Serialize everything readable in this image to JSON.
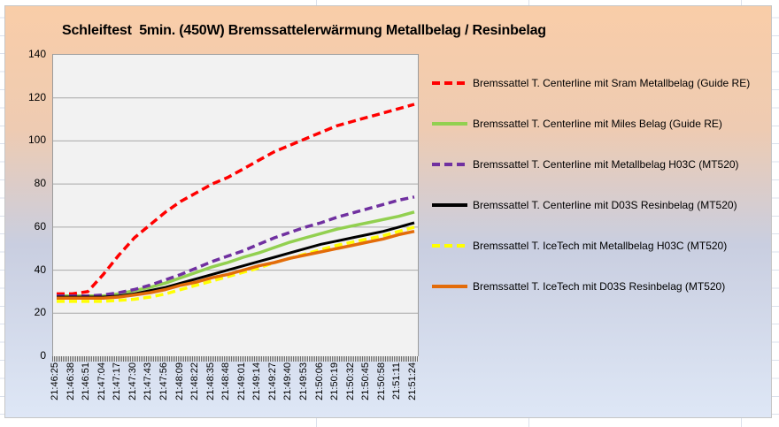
{
  "chart_data": {
    "type": "line",
    "title": "Schleiftest  5min. (450W) Bremssattelerwärmung Metallbelag / Resinbelag",
    "xlabel": "",
    "ylabel": "",
    "ylim": [
      0,
      140
    ],
    "y_ticks": [
      0,
      20,
      40,
      60,
      80,
      100,
      120,
      140
    ],
    "grid": "horizontal",
    "legend_position": "right",
    "plot_bg": "#F2F2F2",
    "grid_color": "#A8A8A8",
    "chart_bg": {
      "top": "#F9CDA8",
      "upper_mid": "#EECBB2",
      "lower_mid": "#C9CEE0",
      "bottom": "#DEE7F6"
    },
    "categories": [
      "21:46:25",
      "21:46:38",
      "21:46:51",
      "21:47:04",
      "21:47:17",
      "21:47:30",
      "21:47:43",
      "21:47:56",
      "21:48:09",
      "21:48:22",
      "21:48:35",
      "21:48:48",
      "21:49:01",
      "21:49:14",
      "21:49:27",
      "21:49:40",
      "21:49:53",
      "21:50:06",
      "21:50:19",
      "21:50:32",
      "21:50:45",
      "21:50:58",
      "21:51:11",
      "21:51:24"
    ],
    "series": [
      {
        "name": "Bremssattel T. Centerline mit Sram Metallbelag (Guide RE)",
        "color": "#FF0000",
        "style": "dashed",
        "width": 3.5,
        "values": [
          29,
          29,
          30,
          38,
          47,
          55,
          61,
          67,
          72,
          76,
          80,
          83,
          87,
          91,
          95,
          98,
          101,
          104,
          107,
          109,
          111,
          113,
          115,
          117
        ]
      },
      {
        "name": "Bremssattel T. Centerline mit Miles Belag (Guide RE)",
        "color": "#92D050",
        "style": "solid",
        "width": 3.5,
        "values": [
          28,
          28,
          28,
          28,
          29,
          30.5,
          32,
          34,
          36.5,
          39,
          41.5,
          43.5,
          46,
          48,
          50.5,
          53,
          55,
          57,
          59,
          60.5,
          62,
          63.5,
          65,
          67
        ]
      },
      {
        "name": "Bremssattel T. Centerline mit Metallbelag H03C (MT520)",
        "color": "#7030A0",
        "style": "dashed",
        "width": 3.5,
        "values": [
          28,
          28,
          28,
          28.5,
          29.5,
          31,
          33,
          35.5,
          38,
          41,
          44,
          46.5,
          49,
          52,
          55,
          57.5,
          60,
          62,
          64.5,
          66.5,
          68.5,
          70.5,
          72.5,
          74
        ]
      },
      {
        "name": "Bremssattel T. Centerline mit D03S Resinbelag (MT520)",
        "color": "#000000",
        "style": "solid",
        "width": 3,
        "values": [
          27.5,
          27.5,
          27.5,
          27.5,
          28,
          29,
          30.5,
          32,
          34,
          36,
          38,
          40,
          42,
          44,
          46,
          48,
          50,
          52,
          53.5,
          55,
          56.5,
          58,
          60,
          62
        ]
      },
      {
        "name": "Bremssattel T. IceTech mit Metallbelag H03C (MT520)",
        "color": "#FFFF00",
        "style": "dashed",
        "width": 3.5,
        "values": [
          25.5,
          25.5,
          25.5,
          25.5,
          26,
          26.5,
          27.5,
          29,
          31,
          33,
          35,
          37,
          39,
          41,
          43.5,
          45.5,
          47.5,
          49.5,
          51.5,
          53,
          54.5,
          56,
          58,
          60
        ]
      },
      {
        "name": "Bremssattel T. IceTech mit D03S Resinbelag (MT520)",
        "color": "#E36C0A",
        "style": "solid",
        "width": 3.5,
        "values": [
          27,
          27,
          27,
          27,
          27.5,
          28.5,
          29.5,
          31,
          33,
          34.5,
          36.5,
          38,
          40,
          42,
          43.5,
          45.5,
          47,
          48.5,
          50,
          51.5,
          53,
          54.5,
          56.5,
          58
        ]
      }
    ]
  }
}
